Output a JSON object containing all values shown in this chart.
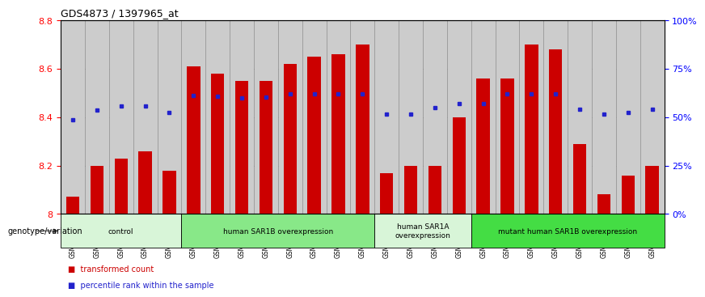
{
  "title": "GDS4873 / 1397965_at",
  "samples": [
    "GSM1279591",
    "GSM1279592",
    "GSM1279593",
    "GSM1279594",
    "GSM1279595",
    "GSM1279596",
    "GSM1279597",
    "GSM1279598",
    "GSM1279599",
    "GSM1279600",
    "GSM1279601",
    "GSM1279602",
    "GSM1279603",
    "GSM1279612",
    "GSM1279613",
    "GSM1279614",
    "GSM1279615",
    "GSM1279604",
    "GSM1279605",
    "GSM1279606",
    "GSM1279607",
    "GSM1279608",
    "GSM1279609",
    "GSM1279610",
    "GSM1279611"
  ],
  "bar_values": [
    8.07,
    8.2,
    8.23,
    8.26,
    8.18,
    8.61,
    8.58,
    8.55,
    8.55,
    8.62,
    8.65,
    8.66,
    8.7,
    8.17,
    8.2,
    8.2,
    8.4,
    8.56,
    8.56,
    8.7,
    8.68,
    8.29,
    8.08,
    8.16,
    8.2
  ],
  "percentile_values": [
    8.39,
    8.43,
    8.445,
    8.445,
    8.42,
    8.49,
    8.485,
    8.48,
    8.483,
    8.497,
    8.497,
    8.497,
    8.497,
    8.413,
    8.413,
    8.44,
    8.455,
    8.457,
    8.497,
    8.497,
    8.497,
    8.433,
    8.413,
    8.42,
    8.432
  ],
  "bar_color": "#cc0000",
  "percentile_color": "#2222cc",
  "ylim_left": [
    8.0,
    8.8
  ],
  "ylim_right": [
    0,
    100
  ],
  "yticks_left": [
    8.0,
    8.2,
    8.4,
    8.6,
    8.8
  ],
  "ytick_labels_left": [
    "8",
    "8.2",
    "8.4",
    "8.6",
    "8.8"
  ],
  "yticks_right": [
    0,
    25,
    50,
    75,
    100
  ],
  "ytick_labels_right": [
    "0%",
    "25%",
    "50%",
    "75%",
    "100%"
  ],
  "groups": [
    {
      "label": "control",
      "start": 0,
      "end": 5,
      "color": "#d8f5d8"
    },
    {
      "label": "human SAR1B overexpression",
      "start": 5,
      "end": 13,
      "color": "#88e888"
    },
    {
      "label": "human SAR1A\noverexpression",
      "start": 13,
      "end": 17,
      "color": "#d8f5d8"
    },
    {
      "label": "mutant human SAR1B overexpression",
      "start": 17,
      "end": 25,
      "color": "#44dd44"
    }
  ],
  "genotype_label": "genotype/variation",
  "legend_items": [
    {
      "label": "transformed count",
      "color": "#cc0000"
    },
    {
      "label": "percentile rank within the sample",
      "color": "#2222cc"
    }
  ],
  "bar_width": 0.55,
  "base_value": 8.0
}
